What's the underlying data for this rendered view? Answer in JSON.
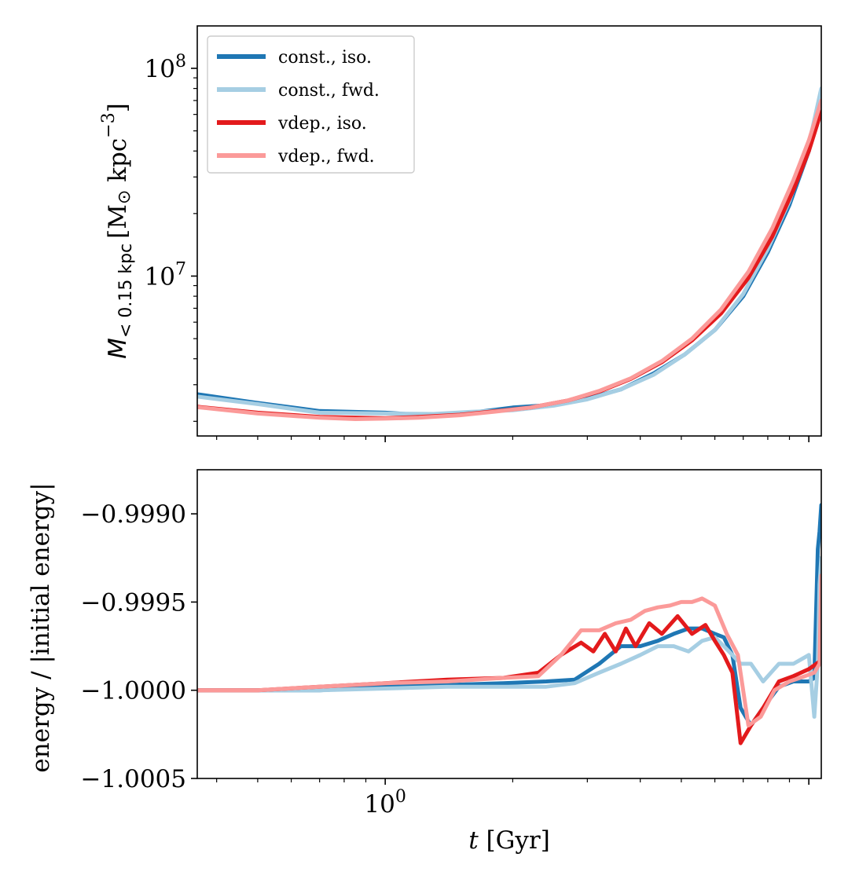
{
  "chart_data": [
    {
      "type": "line",
      "panel": "top",
      "xscale": "log",
      "yscale": "log",
      "xlim": [
        0.36,
        10.7
      ],
      "ylim": [
        1700000,
        160000000
      ],
      "xlabel": "",
      "ylabel_main": "M",
      "ylabel_sub": "< 0.15 kpc",
      "ylabel_unit": "[M",
      "ylabel_sun": "⊙",
      "ylabel_unit2": " kpc",
      "ylabel_exp": "−3",
      "ylabel_close": "]",
      "yticks": [
        {
          "value": 10000000,
          "base": "10",
          "exp": "7"
        },
        {
          "value": 100000000,
          "base": "10",
          "exp": "8"
        }
      ],
      "legend_position": "upper left",
      "series": [
        {
          "name": "const., iso.",
          "color": "#1f77b4",
          "x": [
            0.36,
            0.5,
            0.7,
            1.0,
            1.3,
            1.6,
            2.0,
            2.5,
            3.0,
            3.6,
            4.3,
            5.1,
            6.0,
            7.0,
            8.0,
            9.0,
            10.0,
            10.7
          ],
          "y": [
            2700000,
            2450000,
            2240000,
            2200000,
            2130000,
            2200000,
            2330000,
            2400000,
            2570000,
            2850000,
            3400000,
            4200000,
            5500000,
            8000000,
            13000000,
            22000000,
            40000000,
            75000000
          ]
        },
        {
          "name": "const., fwd.",
          "color": "#a6cee3",
          "x": [
            0.36,
            0.5,
            0.7,
            1.0,
            1.3,
            1.6,
            2.0,
            2.5,
            3.0,
            3.6,
            4.3,
            5.1,
            6.0,
            7.0,
            8.0,
            9.0,
            10.0,
            10.7
          ],
          "y": [
            2630000,
            2420000,
            2200000,
            2180000,
            2170000,
            2220000,
            2260000,
            2380000,
            2550000,
            2850000,
            3350000,
            4200000,
            5500000,
            8200000,
            13500000,
            23000000,
            43000000,
            80000000
          ]
        },
        {
          "name": "vdep., iso.",
          "color": "#e31a1c",
          "x": [
            0.36,
            0.5,
            0.7,
            0.85,
            1.0,
            1.2,
            1.5,
            1.8,
            2.2,
            2.7,
            3.2,
            3.8,
            4.5,
            5.3,
            6.2,
            7.2,
            8.2,
            9.2,
            10.0,
            10.7
          ],
          "y": [
            2350000,
            2200000,
            2100000,
            2080000,
            2070000,
            2100000,
            2150000,
            2230000,
            2330000,
            2520000,
            2780000,
            3200000,
            3850000,
            4900000,
            6600000,
            9800000,
            15500000,
            26000000,
            40000000,
            62000000
          ]
        },
        {
          "name": "vdep., fwd.",
          "color": "#fb9a99",
          "x": [
            0.36,
            0.5,
            0.7,
            0.85,
            1.0,
            1.2,
            1.5,
            1.8,
            2.2,
            2.7,
            3.2,
            3.8,
            4.5,
            5.3,
            6.2,
            7.2,
            8.2,
            9.2,
            10.0,
            10.7
          ],
          "y": [
            2340000,
            2180000,
            2080000,
            2050000,
            2060000,
            2080000,
            2140000,
            2220000,
            2330000,
            2520000,
            2800000,
            3220000,
            3900000,
            5000000,
            6900000,
            10500000,
            17000000,
            29000000,
            45000000,
            70000000
          ]
        }
      ]
    },
    {
      "type": "line",
      "panel": "bottom",
      "xscale": "log",
      "yscale": "linear",
      "xlim": [
        0.36,
        10.7
      ],
      "ylim": [
        -1.0005,
        -0.99875
      ],
      "xlabel_italic": "t",
      "xlabel_rest": " [Gyr]",
      "ylabel": "energy / |initial energy|",
      "xticks": [
        {
          "value": 1.0,
          "base": "10",
          "exp": "0"
        }
      ],
      "yticks": [
        {
          "value": -0.999,
          "label": "−0.9990"
        },
        {
          "value": -0.9995,
          "label": "−0.9995"
        },
        {
          "value": -1.0,
          "label": "−1.0000"
        },
        {
          "value": -1.0005,
          "label": "−1.0005"
        }
      ],
      "series": [
        {
          "name": "const., iso.",
          "color": "#1f77b4",
          "x": [
            0.36,
            0.5,
            0.7,
            1.0,
            1.4,
            1.9,
            2.4,
            2.8,
            3.2,
            3.6,
            4.0,
            4.4,
            4.8,
            5.2,
            5.6,
            6.0,
            6.3,
            6.6,
            6.9,
            7.3,
            7.8,
            8.5,
            9.2,
            10.0,
            10.3,
            10.5,
            10.6,
            10.7
          ],
          "y": [
            -1.0,
            -1.0,
            -1.0,
            -0.99998,
            -0.99997,
            -0.99996,
            -0.99995,
            -0.99994,
            -0.99985,
            -0.99975,
            -0.99975,
            -0.99972,
            -0.99968,
            -0.99965,
            -0.99965,
            -0.99968,
            -0.9997,
            -0.9998,
            -1.0001,
            -1.0002,
            -1.0001,
            -0.99998,
            -0.99995,
            -0.99995,
            -0.99993,
            -0.9992,
            -0.9991,
            -0.99895
          ]
        },
        {
          "name": "const., fwd.",
          "color": "#a6cee3",
          "x": [
            0.36,
            0.5,
            0.7,
            1.0,
            1.4,
            1.9,
            2.4,
            2.8,
            3.2,
            3.6,
            4.0,
            4.4,
            4.8,
            5.2,
            5.6,
            6.0,
            6.3,
            6.6,
            6.9,
            7.3,
            7.8,
            8.5,
            9.2,
            10.0,
            10.3,
            10.5,
            10.6,
            10.7
          ],
          "y": [
            -1.0,
            -1.0,
            -1.0,
            -0.99999,
            -0.99998,
            -0.99998,
            -0.99998,
            -0.99996,
            -0.9999,
            -0.99985,
            -0.9998,
            -0.99975,
            -0.99975,
            -0.99978,
            -0.99972,
            -0.9997,
            -0.99975,
            -0.9998,
            -0.99985,
            -0.99985,
            -0.99995,
            -0.99985,
            -0.99985,
            -0.9998,
            -1.00015,
            -0.99985,
            -0.9994,
            -0.99925
          ]
        },
        {
          "name": "vdep., iso.",
          "color": "#e31a1c",
          "x": [
            0.36,
            0.5,
            0.7,
            1.0,
            1.4,
            1.9,
            2.3,
            2.6,
            2.9,
            3.1,
            3.3,
            3.5,
            3.7,
            3.9,
            4.2,
            4.5,
            4.9,
            5.3,
            5.7,
            6.0,
            6.3,
            6.6,
            6.9,
            7.3,
            7.8,
            8.5,
            9.2,
            10.0,
            10.7
          ],
          "y": [
            -1.0,
            -1.0,
            -0.99998,
            -0.99996,
            -0.99994,
            -0.99993,
            -0.9999,
            -0.9998,
            -0.99973,
            -0.99978,
            -0.99968,
            -0.99978,
            -0.99965,
            -0.99975,
            -0.99962,
            -0.99968,
            -0.99958,
            -0.99968,
            -0.99963,
            -0.99972,
            -0.9998,
            -0.9999,
            -1.0003,
            -1.0002,
            -1.0001,
            -0.99995,
            -0.99992,
            -0.99988,
            -0.99983
          ]
        },
        {
          "name": "vdep., fwd.",
          "color": "#fb9a99",
          "x": [
            0.36,
            0.5,
            0.7,
            1.0,
            1.4,
            1.9,
            2.3,
            2.6,
            2.9,
            3.2,
            3.5,
            3.8,
            4.1,
            4.4,
            4.7,
            5.0,
            5.3,
            5.6,
            6.0,
            6.4,
            6.8,
            7.2,
            7.7,
            8.3,
            9.0,
            9.8,
            10.3,
            10.6,
            10.7
          ],
          "y": [
            -1.0,
            -1.0,
            -0.99998,
            -0.99996,
            -0.99995,
            -0.99993,
            -0.99992,
            -0.9998,
            -0.99966,
            -0.99966,
            -0.99962,
            -0.9996,
            -0.99955,
            -0.99953,
            -0.99952,
            -0.9995,
            -0.9995,
            -0.99948,
            -0.99952,
            -0.99968,
            -0.9998,
            -1.0002,
            -1.00015,
            -1.0,
            -0.99995,
            -0.99992,
            -0.9999,
            -0.99985,
            -0.99935
          ]
        }
      ]
    }
  ]
}
